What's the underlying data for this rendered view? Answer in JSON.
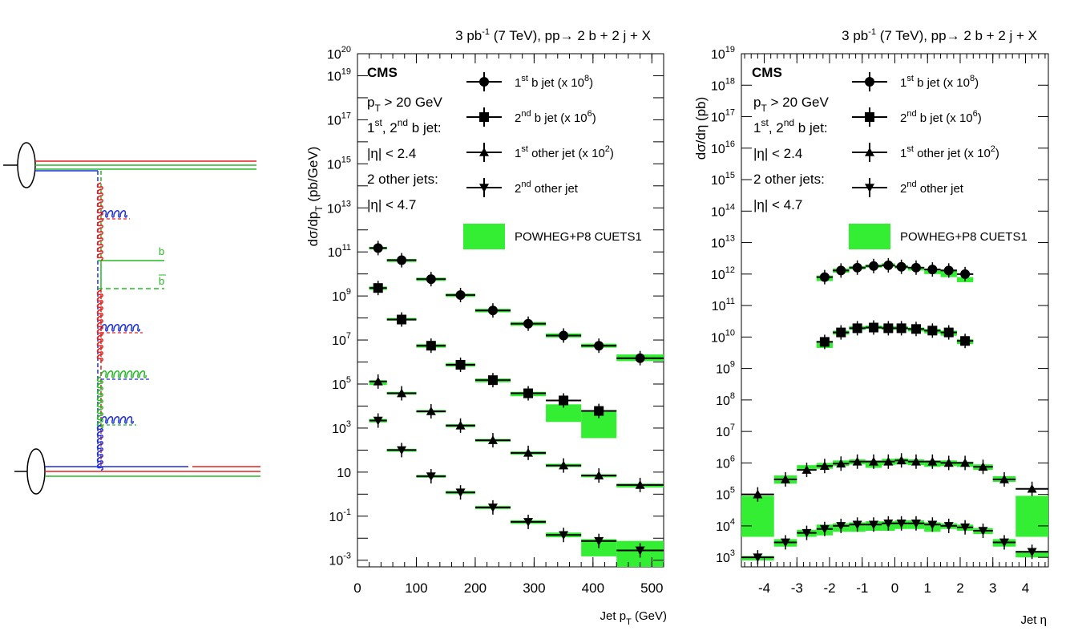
{
  "colors": {
    "band": "#33ee33",
    "marker": "#000000",
    "diagram_red": "#e8201a",
    "diagram_green": "#22bb22",
    "diagram_blue": "#1a2fe0"
  },
  "diagram": {
    "quark_label": "b",
    "antiquark_label": "b"
  },
  "chart_data": [
    {
      "type": "scatter",
      "title": "3 pb⁻¹ (7 TeV), pp→ 2 b + 2 j + X",
      "title_parts": {
        "lumi": "3 pb",
        "exp": "-1",
        "rest": " (7 TeV), pp→ 2 b + 2 j + X"
      },
      "experiment": "CMS",
      "xlabel": "Jet p",
      "xlabel_sub": "T",
      "xlabel_unit": " (GeV)",
      "ylabel": "dσ/dp",
      "ylabel_sub": "T",
      "ylabel_unit": " (pb/GeV)",
      "xlim": [
        0,
        520
      ],
      "ylog": true,
      "ylim": [
        0.0005,
        1e+20
      ],
      "xticks": [
        0,
        100,
        200,
        300,
        400,
        500
      ],
      "yticks": [
        {
          "label": "10",
          "exp": "20",
          "value": 1e+20
        },
        {
          "label": "10",
          "exp": "19",
          "value": 1e+19
        },
        {
          "label": "10",
          "exp": "17",
          "value": 1e+17
        },
        {
          "label": "10",
          "exp": "15",
          "value": 1000000000000000.0
        },
        {
          "label": "10",
          "exp": "13",
          "value": 10000000000000.0
        },
        {
          "label": "10",
          "exp": "11",
          "value": 100000000000.0
        },
        {
          "label": "10",
          "exp": "9",
          "value": 1000000000.0
        },
        {
          "label": "10",
          "exp": "7",
          "value": 10000000.0
        },
        {
          "label": "10",
          "exp": "5",
          "value": 100000.0
        },
        {
          "label": "10",
          "exp": "3",
          "value": 1000.0
        },
        {
          "label": "10",
          "exp": "",
          "value": 10
        },
        {
          "label": "10",
          "exp": "-1",
          "value": 0.1
        },
        {
          "label": "10",
          "exp": "-3",
          "value": 0.001
        }
      ],
      "cuts": [
        {
          "pre": "p",
          "sub": "T",
          "post": " > 20 GeV"
        },
        {
          "pre": "1",
          "sup": "st",
          "post": ", 2",
          "sup2": "nd",
          "post2": " b jet:"
        },
        {
          "pre": "|η| < 2.4"
        },
        {
          "pre": "2 other jets:"
        },
        {
          "pre": "|η| < 4.7"
        }
      ],
      "bins": [
        [
          20,
          50
        ],
        [
          50,
          100
        ],
        [
          100,
          150
        ],
        [
          150,
          200
        ],
        [
          200,
          260
        ],
        [
          260,
          320
        ],
        [
          320,
          380
        ],
        [
          380,
          440
        ],
        [
          440,
          520
        ]
      ],
      "series": [
        {
          "name": "1st b jet (x 10^8)",
          "legend": {
            "pre": "1",
            "sup": "st",
            "post": " b jet (x 10",
            "sup2": "8",
            "post2": ")"
          },
          "marker": "circle",
          "values": [
            150000000000.0,
            42000000000.0,
            5800000000.0,
            1100000000.0,
            220000000.0,
            55000000.0,
            16000000.0,
            5500000.0,
            1500000.0
          ],
          "band": [
            [
              130000000000.0,
              170000000000.0
            ],
            [
              35000000000.0,
              48000000000.0
            ],
            [
              4800000000.0,
              6800000000.0
            ],
            [
              900000000.0,
              1300000000.0
            ],
            [
              180000000.0,
              260000000.0
            ],
            [
              44000000.0,
              66000000.0
            ],
            [
              13000000.0,
              20000000.0
            ],
            [
              4500000.0,
              6800000.0
            ],
            [
              1100000.0,
              2200000.0
            ]
          ]
        },
        {
          "name": "2nd b jet (x 10^6)",
          "legend": {
            "pre": "2",
            "sup": "nd",
            "post": " b jet (x 10",
            "sup2": "6",
            "post2": ")"
          },
          "marker": "square",
          "values": [
            2300000000.0,
            85000000.0,
            5500000.0,
            750000.0,
            150000.0,
            38000.0,
            18000.0,
            6000.0
          ],
          "band": [
            [
              1900000000.0,
              2700000000.0
            ],
            [
              75000000.0,
              100000000.0
            ],
            [
              4500000.0,
              6500000.0
            ],
            [
              620000.0,
              900000.0
            ],
            [
              120000.0,
              180000.0
            ],
            [
              28000.0,
              44000.0
            ],
            [
              1900.0,
              12000.0
            ],
            [
              350.0,
              6500.0
            ]
          ]
        },
        {
          "name": "1st other jet (x 10^2)",
          "legend": {
            "pre": "1",
            "sup": "st",
            "post": " other jet (x 10",
            "sup2": "2",
            "post2": ")"
          },
          "marker": "triangle-up",
          "values": [
            130000.0,
            38000.0,
            5800.0,
            1300.0,
            280.0,
            75,
            20,
            7,
            2.6
          ],
          "band": [
            [
              90000.0,
              150000.0
            ],
            [
              33000.0,
              44000.0
            ],
            [
              5000.0,
              6600.0
            ],
            [
              1100.0,
              1500.0
            ],
            [
              240.0,
              320.0
            ],
            [
              62,
              86
            ],
            [
              17,
              24
            ],
            [
              5.8,
              8
            ],
            [
              2.0,
              3.0
            ]
          ]
        },
        {
          "name": "2nd other jet",
          "legend": {
            "pre": "2",
            "sup": "nd",
            "post": " other jet",
            "sup2": "",
            "post2": ""
          },
          "marker": "triangle-down",
          "values": [
            2200.0,
            100,
            6.5,
            1.2,
            0.25,
            0.055,
            0.014,
            0.0075,
            0.0028
          ],
          "band": [
            [
              1800.0,
              2600.0
            ],
            [
              85,
              115
            ],
            [
              5.5,
              7.5
            ],
            [
              1.0,
              1.4
            ],
            [
              0.21,
              0.29
            ],
            [
              0.045,
              0.065
            ],
            [
              0.011,
              0.018
            ],
            [
              0.0015,
              0.009
            ],
            [
              0.0005,
              0.0075
            ]
          ]
        }
      ],
      "band_name": "POWHEG+P8 CUETS1"
    },
    {
      "type": "scatter",
      "title": "3 pb⁻¹ (7 TeV), pp→ 2 b + 2 j + X",
      "title_parts": {
        "lumi": "3 pb",
        "exp": "-1",
        "rest": " (7 TeV), pp→ 2 b + 2 j + X"
      },
      "experiment": "CMS",
      "xlabel": "Jet η",
      "ylabel": "dσ/dη (pb)",
      "xlim": [
        -4.7,
        4.7
      ],
      "ylog": true,
      "ylim": [
        500,
        1e+19
      ],
      "xticks": [
        -4,
        -3,
        -2,
        -1,
        0,
        1,
        2,
        3,
        4
      ],
      "yticks": [
        {
          "label": "10",
          "exp": "19",
          "value": 1e+19
        },
        {
          "label": "10",
          "exp": "18",
          "value": 1e+18
        },
        {
          "label": "10",
          "exp": "17",
          "value": 1e+17
        },
        {
          "label": "10",
          "exp": "16",
          "value": 1e+16
        },
        {
          "label": "10",
          "exp": "15",
          "value": 1000000000000000.0
        },
        {
          "label": "10",
          "exp": "14",
          "value": 100000000000000.0
        },
        {
          "label": "10",
          "exp": "13",
          "value": 10000000000000.0
        },
        {
          "label": "10",
          "exp": "12",
          "value": 1000000000000.0
        },
        {
          "label": "10",
          "exp": "11",
          "value": 100000000000.0
        },
        {
          "label": "10",
          "exp": "10",
          "value": 10000000000.0
        },
        {
          "label": "10",
          "exp": "9",
          "value": 1000000000.0
        },
        {
          "label": "10",
          "exp": "8",
          "value": 100000000.0
        },
        {
          "label": "10",
          "exp": "7",
          "value": 10000000.0
        },
        {
          "label": "10",
          "exp": "6",
          "value": 1000000.0
        },
        {
          "label": "10",
          "exp": "5",
          "value": 100000.0
        },
        {
          "label": "10",
          "exp": "4",
          "value": 10000.0
        },
        {
          "label": "10",
          "exp": "3",
          "value": 1000.0
        }
      ],
      "cuts": [
        {
          "pre": "p",
          "sub": "T",
          "post": " > 20 GeV"
        },
        {
          "pre": "1",
          "sup": "st",
          "post": ", 2",
          "sup2": "nd",
          "post2": " b jet:"
        },
        {
          "pre": "|η| < 2.4"
        },
        {
          "pre": "2 other jets:"
        },
        {
          "pre": "|η| < 4.7"
        }
      ],
      "inner_bins": [
        [
          -2.4,
          -1.9
        ],
        [
          -1.9,
          -1.4
        ],
        [
          -1.4,
          -0.9
        ],
        [
          -0.9,
          -0.4
        ],
        [
          -0.4,
          0.0
        ],
        [
          0.0,
          0.4
        ],
        [
          0.4,
          0.9
        ],
        [
          0.9,
          1.4
        ],
        [
          1.4,
          1.9
        ],
        [
          1.9,
          2.4
        ]
      ],
      "outer_bins": [
        [
          -4.7,
          -3.7
        ],
        [
          -3.7,
          -3.0
        ],
        [
          -3.0,
          -2.4
        ],
        [
          -2.4,
          -1.9
        ],
        [
          -1.9,
          -1.4
        ],
        [
          -1.4,
          -0.9
        ],
        [
          -0.9,
          -0.4
        ],
        [
          -0.4,
          0.0
        ],
        [
          0.0,
          0.4
        ],
        [
          0.4,
          0.9
        ],
        [
          0.9,
          1.4
        ],
        [
          1.4,
          1.9
        ],
        [
          1.9,
          2.4
        ],
        [
          2.4,
          3.0
        ],
        [
          3.0,
          3.7
        ],
        [
          3.7,
          4.7
        ]
      ],
      "series": [
        {
          "name": "1st b jet (x 10^8)",
          "legend": {
            "pre": "1",
            "sup": "st",
            "post": " b jet (x 10",
            "sup2": "8",
            "post2": ")"
          },
          "marker": "circle",
          "bins": "inner",
          "values": [
            800000000000.0,
            1300000000000.0,
            1600000000000.0,
            1800000000000.0,
            1900000000000.0,
            1700000000000.0,
            1600000000000.0,
            1400000000000.0,
            1300000000000.0,
            1000000000000.0
          ],
          "band": [
            [
              600000000000.0,
              900000000000.0
            ],
            [
              1100000000000.0,
              1500000000000.0
            ],
            [
              1400000000000.0,
              1800000000000.0
            ],
            [
              1600000000000.0,
              2000000000000.0
            ],
            [
              1700000000000.0,
              2200000000000.0
            ],
            [
              1500000000000.0,
              1900000000000.0
            ],
            [
              1300000000000.0,
              1700000000000.0
            ],
            [
              1000000000000.0,
              1400000000000.0
            ],
            [
              800000000000.0,
              1400000000000.0
            ],
            [
              550000000000.0,
              800000000000.0
            ]
          ]
        },
        {
          "name": "2nd b jet (x 10^6)",
          "legend": {
            "pre": "2",
            "sup": "nd",
            "post": " b jet (x 10",
            "sup2": "6",
            "post2": ")"
          },
          "marker": "square",
          "bins": "inner",
          "values": [
            7000000000.0,
            14000000000.0,
            19000000000.0,
            20000000000.0,
            19000000000.0,
            19000000000.0,
            18000000000.0,
            16000000000.0,
            14000000000.0,
            7500000000.0
          ],
          "band": [
            [
              4500000000.0,
              7500000000.0
            ],
            [
              12000000000.0,
              16000000000.0
            ],
            [
              17000000000.0,
              22000000000.0
            ],
            [
              18000000000.0,
              23000000000.0
            ],
            [
              17000000000.0,
              22000000000.0
            ],
            [
              17000000000.0,
              22000000000.0
            ],
            [
              15000000000.0,
              20000000000.0
            ],
            [
              13000000000.0,
              18000000000.0
            ],
            [
              11000000000.0,
              16000000000.0
            ],
            [
              6000000000.0,
              8500000000.0
            ]
          ]
        },
        {
          "name": "1st other jet (x 10^2)",
          "legend": {
            "pre": "1",
            "sup": "st",
            "post": " other jet (x 10",
            "sup2": "2",
            "post2": ")"
          },
          "marker": "triangle-up",
          "bins": "outer",
          "values": [
            100000.0,
            300000.0,
            600000.0,
            800000.0,
            950000.0,
            1100000.0,
            1100000.0,
            1100000.0,
            1200000.0,
            1100000.0,
            1100000.0,
            1000000.0,
            1000000.0,
            750000.0,
            300000.0,
            150000.0
          ],
          "band": [
            [
              4500.0,
              90000.0
            ],
            [
              220000.0,
              400000.0
            ],
            [
              600000.0,
              850000.0
            ],
            [
              650000.0,
              1000000.0
            ],
            [
              800000.0,
              1200000.0
            ],
            [
              900000.0,
              1300000.0
            ],
            [
              700000.0,
              1200000.0
            ],
            [
              850000.0,
              1350000.0
            ],
            [
              900000.0,
              1400000.0
            ],
            [
              850000.0,
              1300000.0
            ],
            [
              750000.0,
              1200000.0
            ],
            [
              800000.0,
              1200000.0
            ],
            [
              750000.0,
              1100000.0
            ],
            [
              600000.0,
              900000.0
            ],
            [
              250000.0,
              380000.0
            ],
            [
              4500.0,
              90000.0
            ]
          ]
        },
        {
          "name": "2nd other jet",
          "legend": {
            "pre": "2",
            "sup": "nd",
            "post": " other jet",
            "sup2": "",
            "post2": ""
          },
          "marker": "triangle-down",
          "bins": "outer",
          "values": [
            1000.0,
            3000.0,
            6000.0,
            8000.0,
            10000.0,
            11000.0,
            11000.0,
            12000.0,
            12000.0,
            12000.0,
            11000.0,
            10000.0,
            9000.0,
            7000.0,
            3000.0,
            1500.0
          ],
          "band": [
            [
              800,
              1100
            ],
            [
              2200.0,
              3800.0
            ],
            [
              4500.0,
              7500.0
            ],
            [
              5000.0,
              11000.0
            ],
            [
              6500.0,
              12000.0
            ],
            [
              6500.0,
              13000.0
            ],
            [
              7000.0,
              14000.0
            ],
            [
              7000.0,
              14000.0
            ],
            [
              8000.0,
              15000.0
            ],
            [
              8000.0,
              15000.0
            ],
            [
              6500.0,
              13000.0
            ],
            [
              8000.0,
              12000.0
            ],
            [
              7000.0,
              11000.0
            ],
            [
              5500.0,
              8500.0
            ],
            [
              2200.0,
              3800.0
            ],
            [
              1000.0,
              1600.0
            ]
          ]
        }
      ],
      "band_name": "POWHEG+P8 CUETS1"
    }
  ]
}
